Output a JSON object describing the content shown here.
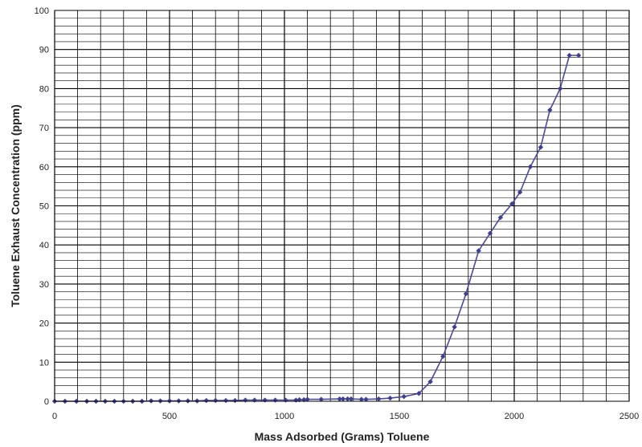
{
  "chart_data": {
    "type": "line",
    "title": "",
    "xlabel": "Mass Adsorbed (Grams) Toluene",
    "ylabel": "Toluene Exhaust Concentration (ppm)",
    "xlim": [
      0,
      2500
    ],
    "ylim": [
      0,
      100
    ],
    "x_ticks": [
      0,
      500,
      1000,
      1500,
      2000,
      2500
    ],
    "y_ticks": [
      0,
      10,
      20,
      30,
      40,
      50,
      60,
      70,
      80,
      90,
      100
    ],
    "grid": true,
    "legend": "none",
    "line_color": "#4a4a9a",
    "marker_color": "#3f3f8f",
    "series": [
      {
        "points": [
          [
            0,
            0
          ],
          [
            45,
            0
          ],
          [
            95,
            0
          ],
          [
            140,
            0
          ],
          [
            180,
            0
          ],
          [
            220,
            0
          ],
          [
            260,
            0
          ],
          [
            300,
            0
          ],
          [
            340,
            0
          ],
          [
            380,
            0
          ],
          [
            420,
            0.1
          ],
          [
            460,
            0.1
          ],
          [
            500,
            0.1
          ],
          [
            540,
            0.1
          ],
          [
            580,
            0.1
          ],
          [
            620,
            0.1
          ],
          [
            660,
            0.2
          ],
          [
            700,
            0.2
          ],
          [
            745,
            0.2
          ],
          [
            785,
            0.2
          ],
          [
            830,
            0.3
          ],
          [
            870,
            0.3
          ],
          [
            915,
            0.3
          ],
          [
            960,
            0.3
          ],
          [
            1005,
            0.3
          ],
          [
            1050,
            0.3
          ],
          [
            1065,
            0.4
          ],
          [
            1085,
            0.4
          ],
          [
            1100,
            0.5
          ],
          [
            1160,
            0.5
          ],
          [
            1240,
            0.6
          ],
          [
            1255,
            0.6
          ],
          [
            1275,
            0.6
          ],
          [
            1290,
            0.6
          ],
          [
            1335,
            0.5
          ],
          [
            1355,
            0.5
          ],
          [
            1410,
            0.6
          ],
          [
            1460,
            0.8
          ],
          [
            1520,
            1.2
          ],
          [
            1585,
            2
          ],
          [
            1635,
            5
          ],
          [
            1690,
            11.5
          ],
          [
            1740,
            19
          ],
          [
            1790,
            27.5
          ],
          [
            1845,
            38.5
          ],
          [
            1895,
            43
          ],
          [
            1940,
            47
          ],
          [
            1990,
            50.5
          ],
          [
            2025,
            53.5
          ],
          [
            2070,
            60
          ],
          [
            2115,
            65
          ],
          [
            2155,
            74.5
          ],
          [
            2200,
            80
          ],
          [
            2240,
            88.5
          ],
          [
            2280,
            88.5
          ]
        ]
      }
    ]
  }
}
